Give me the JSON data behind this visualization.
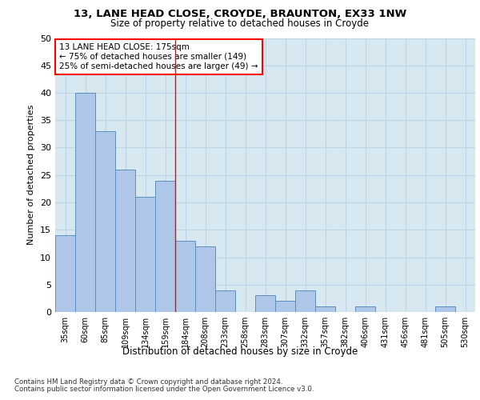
{
  "title1": "13, LANE HEAD CLOSE, CROYDE, BRAUNTON, EX33 1NW",
  "title2": "Size of property relative to detached houses in Croyde",
  "xlabel": "Distribution of detached houses by size in Croyde",
  "ylabel": "Number of detached properties",
  "categories": [
    "35sqm",
    "60sqm",
    "85sqm",
    "109sqm",
    "134sqm",
    "159sqm",
    "184sqm",
    "208sqm",
    "233sqm",
    "258sqm",
    "283sqm",
    "307sqm",
    "332sqm",
    "357sqm",
    "382sqm",
    "406sqm",
    "431sqm",
    "456sqm",
    "481sqm",
    "505sqm",
    "530sqm"
  ],
  "values": [
    14,
    40,
    33,
    26,
    21,
    24,
    13,
    12,
    4,
    0,
    3,
    2,
    4,
    1,
    0,
    1,
    0,
    0,
    0,
    1,
    0
  ],
  "bar_color": "#aec6e8",
  "bar_edge_color": "#5a8fc0",
  "vline_x": 5.5,
  "vline_color": "red",
  "annotation_text": "13 LANE HEAD CLOSE: 175sqm\n← 75% of detached houses are smaller (149)\n25% of semi-detached houses are larger (49) →",
  "annotation_box_color": "white",
  "annotation_box_edge_color": "red",
  "ylim": [
    0,
    50
  ],
  "yticks": [
    0,
    5,
    10,
    15,
    20,
    25,
    30,
    35,
    40,
    45,
    50
  ],
  "grid_color": "#c0d4e8",
  "bg_color": "#d8e8f0",
  "footer1": "Contains HM Land Registry data © Crown copyright and database right 2024.",
  "footer2": "Contains public sector information licensed under the Open Government Licence v3.0."
}
